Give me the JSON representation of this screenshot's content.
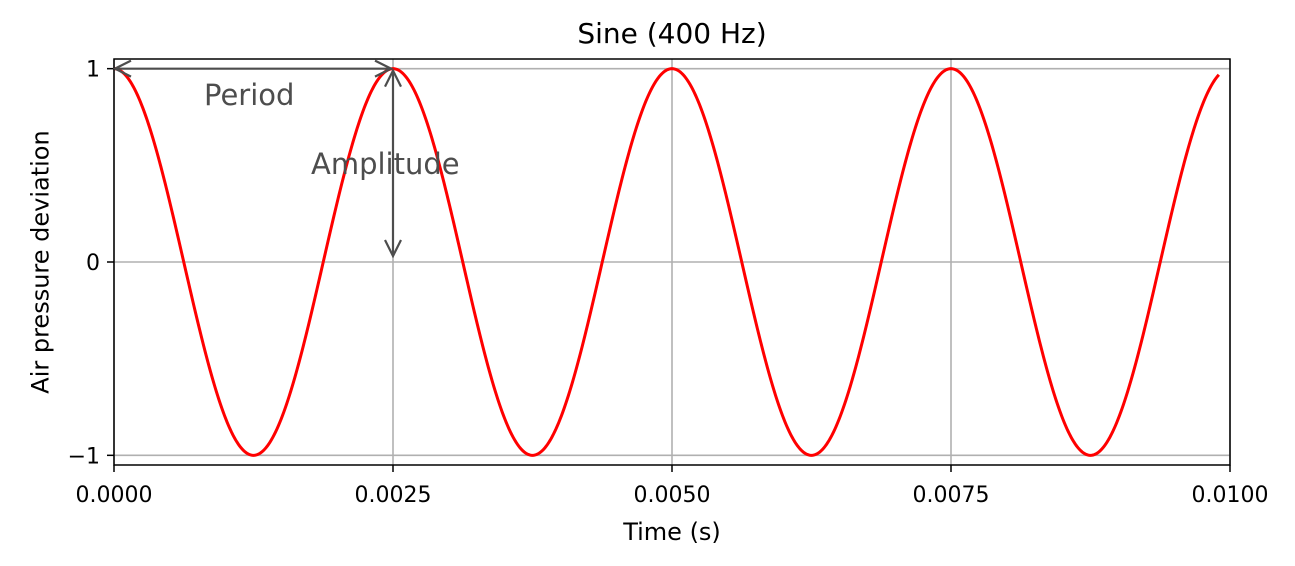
{
  "chart_data": {
    "type": "line",
    "title": "Sine (400 Hz)",
    "xlabel": "Time (s)",
    "ylabel": "Air pressure deviation",
    "xlim": [
      0,
      0.01
    ],
    "ylim": [
      -1.05,
      1.05
    ],
    "grid": true,
    "x_ticks": [
      0,
      0.0025,
      0.005,
      0.0075,
      0.01
    ],
    "x_tick_labels": [
      "0.0000",
      "0.0025",
      "0.0050",
      "0.0075",
      "0.0100"
    ],
    "y_ticks": [
      -1,
      0,
      1
    ],
    "y_tick_labels": [
      "−1",
      "0",
      "1"
    ],
    "series": [
      {
        "function": "cos",
        "amplitude": 1,
        "frequency_hz": 400,
        "x_start": 0,
        "x_end": 0.0099,
        "color": "#ff0000"
      }
    ],
    "annotations": [
      {
        "text": "Period",
        "from": [
          0,
          1
        ],
        "to": [
          0.0025,
          1
        ],
        "color": "#4d4d4d"
      },
      {
        "text": "Amplitude",
        "from": [
          0.0025,
          1
        ],
        "to": [
          0.0025,
          0
        ],
        "color": "#4d4d4d"
      }
    ]
  }
}
